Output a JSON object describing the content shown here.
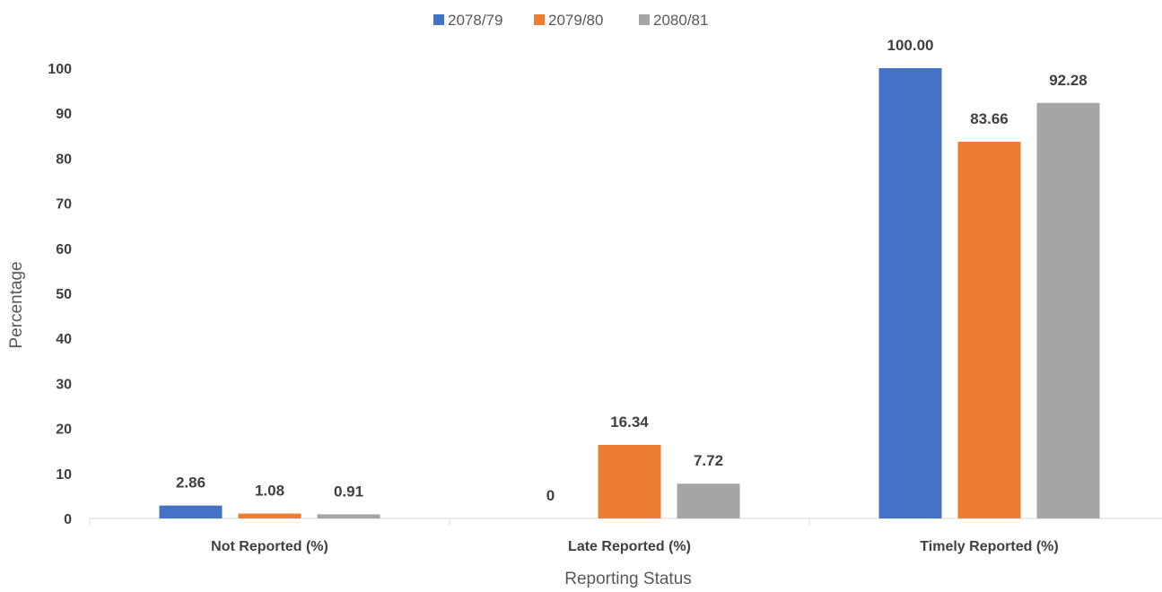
{
  "chart_data": {
    "type": "bar",
    "categories": [
      "Not Reported (%)",
      "Late Reported  (%)",
      "Timely Reported  (%)"
    ],
    "series": [
      {
        "name": "2078/79",
        "color": "#4472C4",
        "values": [
          2.86,
          0,
          100.0
        ],
        "labels": [
          "2.86",
          "0",
          "100.00"
        ]
      },
      {
        "name": "2079/80",
        "color": "#ED7D31",
        "values": [
          1.08,
          16.34,
          83.66
        ],
        "labels": [
          "1.08",
          "16.34",
          "83.66"
        ]
      },
      {
        "name": "2080/81",
        "color": "#A5A5A5",
        "values": [
          0.91,
          7.72,
          92.28
        ],
        "labels": [
          "0.91",
          "7.72",
          "92.28"
        ]
      }
    ],
    "xlabel": "Reporting Status",
    "ylabel": "Percentage",
    "ylim": [
      0,
      100
    ],
    "yticks": [
      0,
      10,
      20,
      30,
      40,
      50,
      60,
      70,
      80,
      90,
      100
    ],
    "grid": false,
    "legend": "top-center"
  }
}
